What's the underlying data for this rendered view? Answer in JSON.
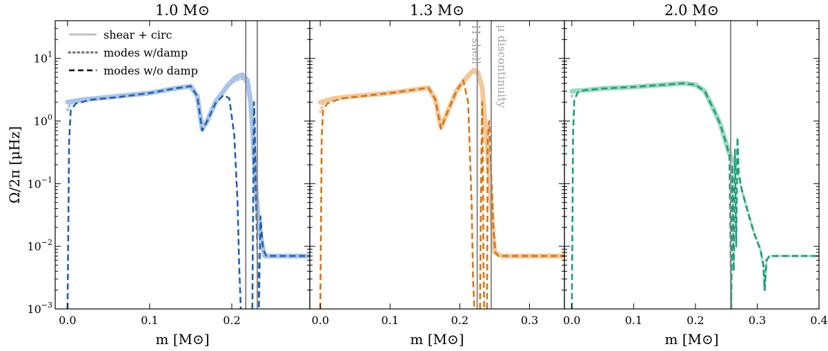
{
  "figure": {
    "ylabel": "Ω/2π [μHz]",
    "ylim": [
      0.001,
      40
    ],
    "y_ticks": [
      {
        "value": 0.001,
        "base": "10",
        "exp": "−3"
      },
      {
        "value": 0.01,
        "base": "10",
        "exp": "−2"
      },
      {
        "value": 0.1,
        "base": "10",
        "exp": "−1"
      },
      {
        "value": 1,
        "base": "10",
        "exp": "0"
      },
      {
        "value": 10,
        "base": "10",
        "exp": "1"
      }
    ]
  },
  "legend": {
    "location": "upper-left of first panel",
    "entries": [
      {
        "label": "shear + circ",
        "style": "solid",
        "color": "#c0c0c0"
      },
      {
        "label": "modes w/damp",
        "style": "dotted",
        "color": "#808080"
      },
      {
        "label": "modes w/o damp",
        "style": "dashed",
        "color": "#000000"
      }
    ]
  },
  "annotations": {
    "h_shell": "H shell",
    "mu_discontinuity": "μ discontinuity"
  },
  "chart_data": [
    {
      "type": "line",
      "title": "1.0 M⊙",
      "xlabel": "m [M⊙]",
      "xlim": [
        -0.015,
        0.295
      ],
      "x_ticks": [
        "0.0",
        "0.1",
        "0.2"
      ],
      "x_tick_values": [
        0.0,
        0.1,
        0.2
      ],
      "color": "#1f5fb5",
      "light_color": "#a9c4e8",
      "vlines": [
        0.217,
        0.231
      ],
      "series": [
        {
          "name": "shear + circ",
          "style": "solid",
          "x": [
            0,
            0.02,
            0.05,
            0.1,
            0.13,
            0.15,
            0.158,
            0.164,
            0.17,
            0.18,
            0.195,
            0.205,
            0.213,
            0.219,
            0.223,
            0.226,
            0.229,
            0.232,
            0.236,
            0.24,
            0.25,
            0.27,
            0.295
          ],
          "y": [
            2.0,
            2.2,
            2.4,
            2.8,
            3.3,
            3.6,
            2.5,
            0.75,
            1.0,
            2.0,
            3.7,
            5.0,
            5.5,
            4.5,
            2.0,
            0.5,
            0.1,
            0.03,
            0.012,
            0.007,
            0.007,
            0.007,
            0.007
          ]
        },
        {
          "name": "modes w/damp",
          "style": "dotted",
          "x": [
            0,
            0.004,
            0.02,
            0.05,
            0.1,
            0.13,
            0.15,
            0.158,
            0.164,
            0.17,
            0.18,
            0.195,
            0.205,
            0.213,
            0.219,
            0.223,
            0.226,
            0.229,
            0.232,
            0.236,
            0.24,
            0.25,
            0.27,
            0.295
          ],
          "y": [
            1.5,
            1.9,
            2.2,
            2.4,
            2.8,
            3.3,
            3.6,
            2.5,
            0.75,
            1.0,
            2.0,
            3.7,
            4.5,
            4.7,
            4.0,
            2.0,
            0.5,
            0.1,
            0.03,
            0.012,
            0.007,
            0.007,
            0.007,
            0.007
          ]
        },
        {
          "name": "modes w/o damp",
          "style": "dashed",
          "x": [
            0,
            0.001,
            0.002,
            0.004,
            0.01,
            0.03,
            0.06,
            0.1,
            0.13,
            0.15,
            0.158,
            0.164,
            0.17,
            0.18,
            0.19,
            0.197,
            0.203,
            0.207,
            0.209,
            0.211
          ],
          "y": [
            0.001,
            0.02,
            0.5,
            1.5,
            1.9,
            2.2,
            2.4,
            2.8,
            3.3,
            3.6,
            2.5,
            0.7,
            1.0,
            1.9,
            2.6,
            2.3,
            0.6,
            0.05,
            0.005,
            0.001
          ]
        },
        {
          "name": "modes w/o damp (spike)",
          "style": "dashed",
          "x": [
            0.225,
            0.226,
            0.227,
            0.228,
            0.229,
            0.231,
            0.233,
            0.235,
            0.238,
            0.242,
            0.25,
            0.27,
            0.295
          ],
          "y": [
            0.001,
            0.05,
            2.0,
            1.0,
            0.1,
            0.01,
            0.001,
            0.03,
            0.009,
            0.007,
            0.007,
            0.007,
            0.007
          ]
        }
      ]
    },
    {
      "type": "line",
      "title": "1.3 M⊙",
      "xlabel": "m [M⊙]",
      "xlim": [
        -0.015,
        0.35
      ],
      "x_ticks": [
        "0.0",
        "0.1",
        "0.2",
        "0.3"
      ],
      "x_tick_values": [
        0.0,
        0.1,
        0.2,
        0.3
      ],
      "color": "#d9730d",
      "light_color": "#f2c89b",
      "vlines": [
        0.225,
        0.245
      ],
      "series": [
        {
          "name": "shear + circ",
          "style": "solid",
          "x": [
            0,
            0.02,
            0.05,
            0.1,
            0.13,
            0.155,
            0.165,
            0.173,
            0.18,
            0.195,
            0.21,
            0.22,
            0.226,
            0.232,
            0.236,
            0.24,
            0.244,
            0.247,
            0.25,
            0.26,
            0.3,
            0.35
          ],
          "y": [
            2.0,
            2.3,
            2.5,
            2.8,
            3.1,
            3.4,
            2.2,
            0.8,
            1.2,
            3.0,
            5.0,
            6.5,
            6.0,
            3.5,
            1.0,
            0.3,
            0.08,
            0.02,
            0.008,
            0.007,
            0.007,
            0.007
          ]
        },
        {
          "name": "modes w/damp",
          "style": "dotted",
          "x": [
            0,
            0.004,
            0.02,
            0.05,
            0.1,
            0.13,
            0.155,
            0.165,
            0.173,
            0.18,
            0.195,
            0.21,
            0.22,
            0.226,
            0.232,
            0.236,
            0.24,
            0.244,
            0.247,
            0.25,
            0.26,
            0.3,
            0.35
          ],
          "y": [
            1.4,
            1.9,
            2.3,
            2.5,
            2.8,
            3.1,
            3.4,
            2.2,
            0.8,
            1.2,
            3.0,
            5.0,
            6.0,
            5.5,
            3.5,
            1.0,
            0.3,
            0.08,
            0.02,
            0.008,
            0.007,
            0.007,
            0.007
          ]
        },
        {
          "name": "modes w/o damp",
          "style": "dashed",
          "x": [
            0,
            0.001,
            0.002,
            0.004,
            0.01,
            0.03,
            0.06,
            0.1,
            0.13,
            0.155,
            0.165,
            0.173,
            0.18,
            0.195,
            0.205,
            0.212,
            0.217,
            0.219,
            0.221
          ],
          "y": [
            0.001,
            0.02,
            0.5,
            1.5,
            1.9,
            2.3,
            2.5,
            2.8,
            3.1,
            3.4,
            2.2,
            0.75,
            1.2,
            3.0,
            4.5,
            2.0,
            0.05,
            0.003,
            0.001
          ]
        },
        {
          "name": "modes w/o damp (spike)",
          "style": "dashed",
          "x": [
            0.229,
            0.23,
            0.231,
            0.232,
            0.233,
            0.234,
            0.235
          ],
          "y": [
            0.001,
            0.02,
            0.3,
            2.0,
            0.3,
            0.005,
            0.001
          ]
        },
        {
          "name": "modes w/o damp (tail)",
          "style": "dashed",
          "x": [
            0.239,
            0.24,
            0.242,
            0.244,
            0.246,
            0.248,
            0.251,
            0.255,
            0.26,
            0.3,
            0.35
          ],
          "y": [
            0.001,
            0.5,
            1.0,
            0.3,
            0.08,
            0.02,
            0.008,
            0.007,
            0.007,
            0.007,
            0.007
          ]
        }
      ]
    },
    {
      "type": "line",
      "title": "2.0 M⊙",
      "xlabel": "m [M⊙]",
      "xlim": [
        -0.012,
        0.4
      ],
      "x_ticks": [
        "0.0",
        "0.1",
        "0.2",
        "0.3",
        "0.4"
      ],
      "x_tick_values": [
        0.0,
        0.1,
        0.2,
        0.3,
        0.4
      ],
      "color": "#1a9e77",
      "light_color": "#9fd9c4",
      "vlines": [
        0.257
      ],
      "series": [
        {
          "name": "shear + circ",
          "style": "solid",
          "x": [
            0,
            0.02,
            0.05,
            0.1,
            0.15,
            0.18,
            0.2,
            0.215,
            0.23,
            0.24,
            0.248,
            0.255,
            0.26,
            0.265
          ],
          "y": [
            3.0,
            3.1,
            3.3,
            3.5,
            3.8,
            4.0,
            3.8,
            3.0,
            1.5,
            0.9,
            0.5,
            0.3,
            0.25,
            0.2
          ]
        },
        {
          "name": "modes w/damp",
          "style": "dotted",
          "x": [
            0,
            0.004,
            0.02,
            0.05,
            0.1,
            0.15,
            0.18,
            0.2,
            0.215,
            0.23,
            0.24,
            0.248,
            0.255,
            0.26,
            0.268,
            0.275,
            0.285,
            0.295,
            0.305,
            0.31,
            0.312,
            0.315,
            0.32,
            0.33,
            0.35,
            0.4
          ],
          "y": [
            2.5,
            2.9,
            3.1,
            3.3,
            3.5,
            3.8,
            4.0,
            3.8,
            3.0,
            1.5,
            0.9,
            0.5,
            0.3,
            0.25,
            0.15,
            0.08,
            0.035,
            0.016,
            0.009,
            0.005,
            0.002,
            0.006,
            0.007,
            0.007,
            0.007,
            0.007
          ]
        },
        {
          "name": "modes w/o damp",
          "style": "dashed",
          "x": [
            0,
            0.001,
            0.002,
            0.004,
            0.01,
            0.02,
            0.05,
            0.1,
            0.15,
            0.18,
            0.2,
            0.215,
            0.23,
            0.24,
            0.248,
            0.255,
            0.258,
            0.26,
            0.262,
            0.264,
            0.266,
            0.268,
            0.27,
            0.275,
            0.285,
            0.295,
            0.305,
            0.31,
            0.312,
            0.315,
            0.32,
            0.33,
            0.35,
            0.4
          ],
          "y": [
            0.001,
            0.02,
            0.6,
            2.2,
            2.9,
            3.1,
            3.3,
            3.5,
            3.8,
            4.0,
            3.8,
            3.0,
            1.5,
            0.9,
            0.5,
            0.28,
            0.001,
            0.2,
            0.004,
            0.35,
            0.01,
            0.55,
            0.15,
            0.08,
            0.035,
            0.016,
            0.009,
            0.005,
            0.002,
            0.006,
            0.007,
            0.007,
            0.007,
            0.007
          ]
        }
      ]
    }
  ]
}
